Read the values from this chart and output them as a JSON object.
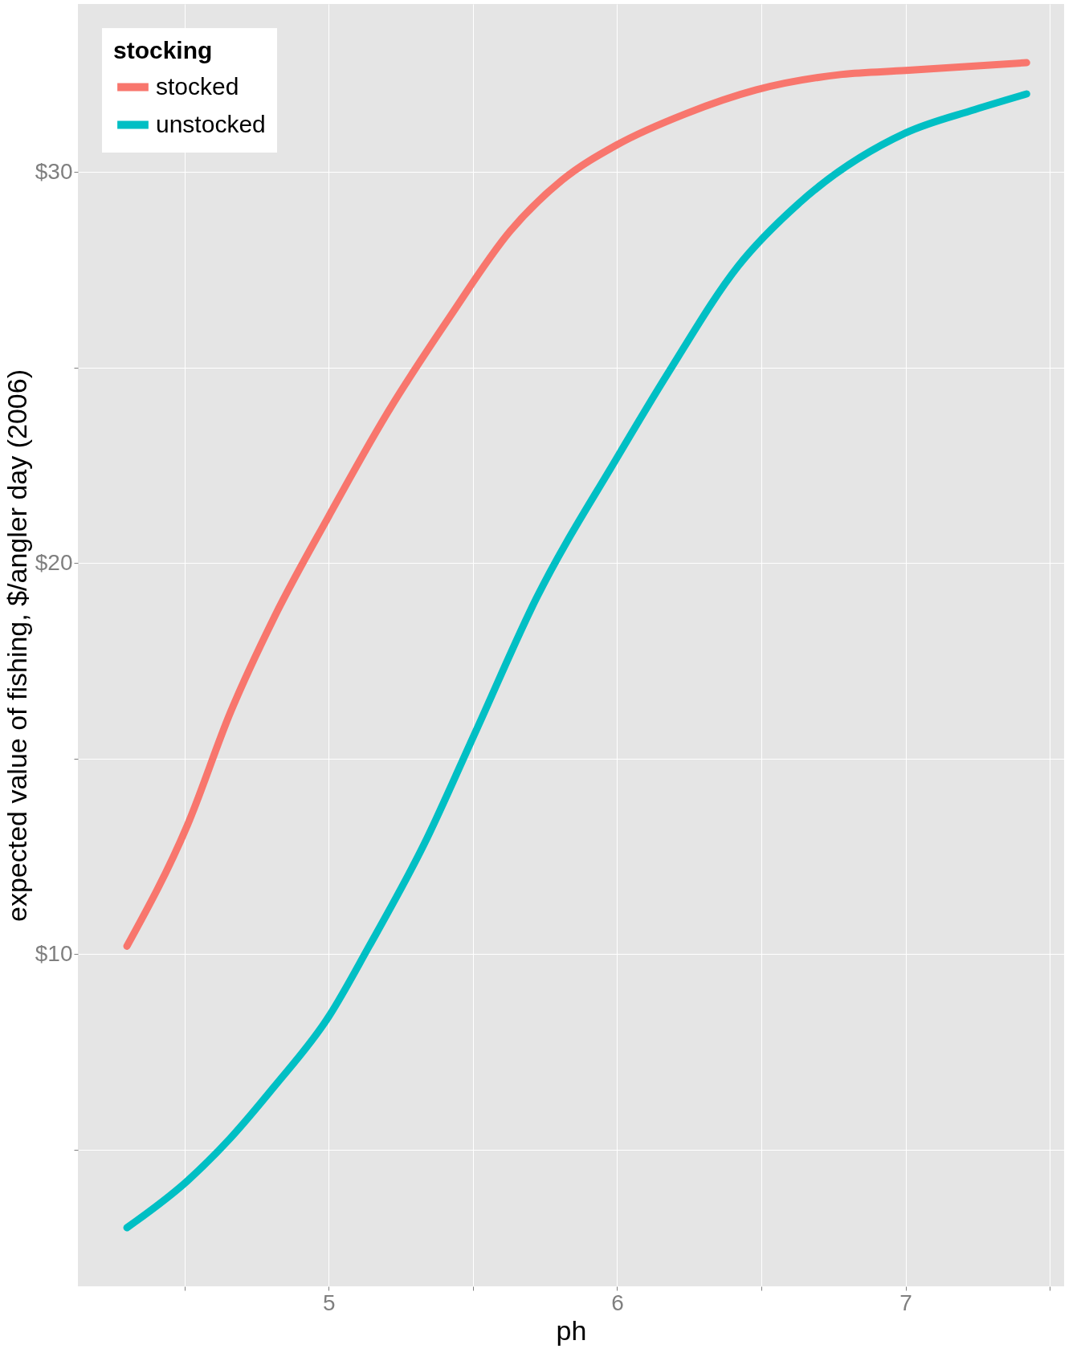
{
  "chart_data": {
    "type": "line",
    "xlabel": "ph",
    "ylabel": "expected value of fishing, $/angler day (2006)",
    "legend_title": "stocking",
    "legend": "top left",
    "grid": true,
    "line_style": "solid",
    "xlim": [
      4.13,
      7.55
    ],
    "ylim": [
      1.5,
      34.3
    ],
    "xticks": [
      {
        "value": 4.5,
        "label": null
      },
      5,
      {
        "value": 5.5,
        "label": null
      },
      6,
      {
        "value": 6.5,
        "label": null
      },
      7,
      {
        "value": 7.5,
        "label": null
      }
    ],
    "yticks": [
      {
        "value": 5,
        "label": null
      },
      {
        "value": 10,
        "label": "$10"
      },
      {
        "value": 15,
        "label": null
      },
      {
        "value": 20,
        "label": "$20"
      },
      {
        "value": 25,
        "label": null
      },
      {
        "value": 30,
        "label": "$30"
      }
    ],
    "series": [
      {
        "name": "stocked",
        "color": "#f8766d",
        "x": [
          4.3,
          4.51,
          4.66,
          4.81,
          5.0,
          5.2,
          5.42,
          5.63,
          5.81,
          6.0,
          6.24,
          6.48,
          6.78,
          7.0,
          7.42
        ],
        "values": [
          10.2,
          13.3,
          16.2,
          18.6,
          21.2,
          23.8,
          26.3,
          28.5,
          29.8,
          30.7,
          31.5,
          32.1,
          32.5,
          32.6,
          32.8
        ]
      },
      {
        "name": "unstocked",
        "color": "#00bfc4",
        "x": [
          4.3,
          4.51,
          4.66,
          4.81,
          5.0,
          5.14,
          5.33,
          5.51,
          5.72,
          6.0,
          6.18,
          6.42,
          6.63,
          7.0,
          7.24,
          7.42
        ],
        "values": [
          3.0,
          4.2,
          5.3,
          6.6,
          8.4,
          10.2,
          12.8,
          15.7,
          19.1,
          22.7,
          24.9,
          27.6,
          29.2,
          31.0,
          31.6,
          32.0
        ]
      }
    ]
  }
}
